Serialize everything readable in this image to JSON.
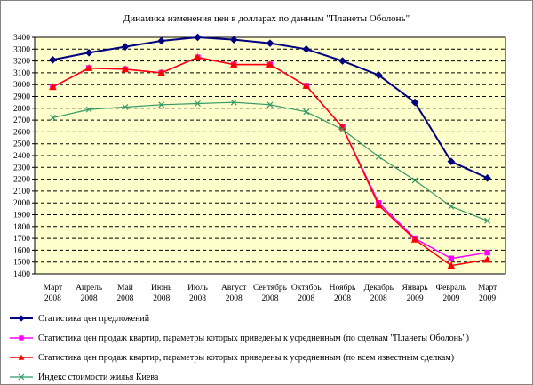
{
  "window": {
    "background": "#ffffff",
    "border_color": "#848484",
    "plot_background": "#ffffcc",
    "grid_color": "#000000",
    "text_color": "#000000"
  },
  "chart_data": {
    "type": "line",
    "title": "Динамика изменения цен в долларах по данным \"Планеты Оболонь\"",
    "xlabel": "",
    "ylabel": "",
    "ylim": [
      1400,
      3400
    ],
    "ytick_step": 100,
    "grid": "horizontal-dashed",
    "legend_position": "bottom-left",
    "categories": [
      {
        "month": "Март",
        "year": "2008"
      },
      {
        "month": "Апрель",
        "year": "2008"
      },
      {
        "month": "Май",
        "year": "2008"
      },
      {
        "month": "Июнь",
        "year": "2008"
      },
      {
        "month": "Июль",
        "year": "2008"
      },
      {
        "month": "Август",
        "year": "2008"
      },
      {
        "month": "Сентябрь",
        "year": "2008"
      },
      {
        "month": "Октябрь",
        "year": "2008"
      },
      {
        "month": "Ноябрь",
        "year": "2008"
      },
      {
        "month": "Декабрь",
        "year": "2008"
      },
      {
        "month": "Январь",
        "year": "2009"
      },
      {
        "month": "Февраль",
        "year": "2009"
      },
      {
        "month": "Март",
        "year": "2009"
      }
    ],
    "series": [
      {
        "name": "Статистика цен предложений",
        "color": "#000080",
        "marker": "diamond",
        "line_width": 2,
        "values": [
          3210,
          3270,
          3320,
          3370,
          3400,
          3380,
          3350,
          3300,
          3200,
          3080,
          2850,
          2350,
          2210
        ]
      },
      {
        "name": "Статистика цен продаж квартир, параметры которых приведены к усредненным (по сделкам \"Планеты Оболонь\")",
        "color": "#ff00ff",
        "marker": "square",
        "line_width": 1.5,
        "values": [
          2980,
          3140,
          3130,
          3100,
          3230,
          3170,
          3170,
          2990,
          2640,
          2000,
          1700,
          1530,
          1580
        ]
      },
      {
        "name": "Статистика цен продаж квартир, параметры которых приведены к усредненным (по всем известным сделкам)",
        "color": "#ff0000",
        "marker": "triangle",
        "line_width": 1.5,
        "values": [
          2980,
          3140,
          3130,
          3100,
          3230,
          3170,
          3170,
          2990,
          2640,
          1980,
          1690,
          1470,
          1520
        ]
      },
      {
        "name": "Индекс стоимости жилья Киева",
        "color": "#339966",
        "marker": "x",
        "line_width": 1.2,
        "values": [
          2720,
          2790,
          2810,
          2830,
          2840,
          2850,
          2830,
          2770,
          2620,
          2390,
          2190,
          1970,
          1850
        ]
      }
    ]
  }
}
